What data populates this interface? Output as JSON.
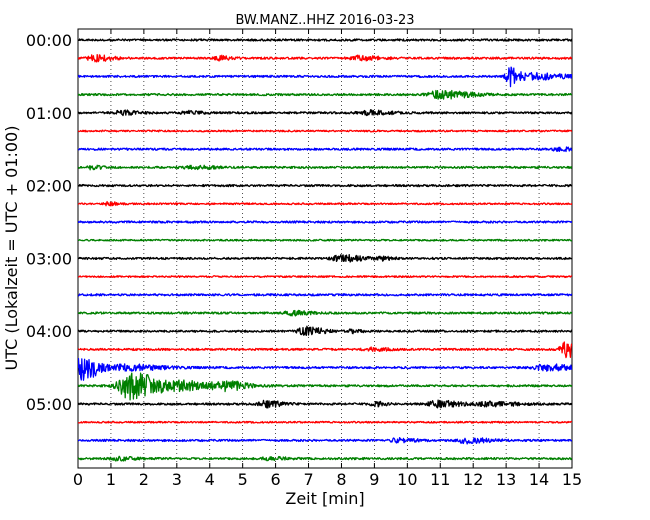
{
  "chart_data": {
    "type": "line",
    "title": "BW.MANZ..HHZ 2016-03-23",
    "xlabel": "Zeit  [min]",
    "ylabel": "UTC (Lokalzeit = UTC + 01:00)",
    "xlim": [
      0,
      15
    ],
    "x_ticks": [
      "0",
      "1",
      "2",
      "3",
      "4",
      "5",
      "6",
      "7",
      "8",
      "9",
      "10",
      "11",
      "12",
      "13",
      "14",
      "15"
    ],
    "y_ticks": [
      "00:00",
      "01:00",
      "02:00",
      "03:00",
      "04:00",
      "05:00"
    ],
    "grid": "vertical dotted",
    "colors": [
      "#000000",
      "#ff0000",
      "#0000ff",
      "#008000"
    ],
    "trace_interval_min": 15,
    "traces": [
      {
        "start": "00:00",
        "color": "#000000",
        "amp": 1.0,
        "events": []
      },
      {
        "start": "00:15",
        "color": "#ff0000",
        "amp": 1.0,
        "events": [
          {
            "t": 0.5,
            "a": 3,
            "w": 0.3
          },
          {
            "t": 4.3,
            "a": 2,
            "w": 0.2
          },
          {
            "t": 8.5,
            "a": 2,
            "w": 0.4
          }
        ]
      },
      {
        "start": "00:30",
        "color": "#0000ff",
        "amp": 1.0,
        "events": [
          {
            "t": 13.1,
            "a": 10,
            "w": 0.15
          },
          {
            "t": 13.8,
            "a": 3,
            "w": 0.6
          }
        ]
      },
      {
        "start": "00:45",
        "color": "#008000",
        "amp": 1.0,
        "events": [
          {
            "t": 11.0,
            "a": 4,
            "w": 0.5
          }
        ]
      },
      {
        "start": "01:00",
        "color": "#000000",
        "amp": 1.0,
        "events": [
          {
            "t": 1.3,
            "a": 2,
            "w": 0.3
          },
          {
            "t": 3.3,
            "a": 1.5,
            "w": 0.3
          },
          {
            "t": 8.8,
            "a": 2,
            "w": 0.4
          }
        ]
      },
      {
        "start": "01:15",
        "color": "#ff0000",
        "amp": 0.8,
        "events": []
      },
      {
        "start": "01:30",
        "color": "#0000ff",
        "amp": 1.0,
        "events": [
          {
            "t": 14.6,
            "a": 1.5,
            "w": 0.3
          }
        ]
      },
      {
        "start": "01:45",
        "color": "#008000",
        "amp": 1.0,
        "events": [
          {
            "t": 0.4,
            "a": 1.5,
            "w": 0.2
          },
          {
            "t": 3.5,
            "a": 1.5,
            "w": 0.4
          }
        ]
      },
      {
        "start": "02:00",
        "color": "#000000",
        "amp": 1.0,
        "events": []
      },
      {
        "start": "02:15",
        "color": "#ff0000",
        "amp": 0.8,
        "events": [
          {
            "t": 0.9,
            "a": 1.5,
            "w": 0.2
          }
        ]
      },
      {
        "start": "02:30",
        "color": "#0000ff",
        "amp": 1.0,
        "events": []
      },
      {
        "start": "02:45",
        "color": "#008000",
        "amp": 0.8,
        "events": []
      },
      {
        "start": "03:00",
        "color": "#000000",
        "amp": 1.0,
        "events": [
          {
            "t": 8.0,
            "a": 3,
            "w": 0.4
          },
          {
            "t": 9.2,
            "a": 1.5,
            "w": 0.2
          }
        ]
      },
      {
        "start": "03:15",
        "color": "#ff0000",
        "amp": 0.8,
        "events": []
      },
      {
        "start": "03:30",
        "color": "#0000ff",
        "amp": 1.0,
        "events": []
      },
      {
        "start": "03:45",
        "color": "#008000",
        "amp": 1.0,
        "events": [
          {
            "t": 6.5,
            "a": 2,
            "w": 0.3
          }
        ]
      },
      {
        "start": "04:00",
        "color": "#000000",
        "amp": 1.0,
        "events": [
          {
            "t": 6.9,
            "a": 4,
            "w": 0.3
          },
          {
            "t": 8.3,
            "a": 2,
            "w": 0.15
          }
        ]
      },
      {
        "start": "04:15",
        "color": "#ff0000",
        "amp": 1.0,
        "events": [
          {
            "t": 14.9,
            "a": 9,
            "w": 0.35
          },
          {
            "t": 8.9,
            "a": 1.5,
            "w": 0.3
          }
        ]
      },
      {
        "start": "04:30",
        "color": "#0000ff",
        "amp": 1.0,
        "events": [
          {
            "t": 0.1,
            "a": 13,
            "w": 0.3
          },
          {
            "t": 1.5,
            "a": 3,
            "w": 0.6
          },
          {
            "t": 14.2,
            "a": 3,
            "w": 0.5
          }
        ]
      },
      {
        "start": "04:45",
        "color": "#008000",
        "amp": 1.0,
        "events": [
          {
            "t": 1.6,
            "a": 14,
            "w": 0.5
          },
          {
            "t": 3.3,
            "a": 4,
            "w": 0.8
          },
          {
            "t": 4.5,
            "a": 3,
            "w": 0.3
          }
        ]
      },
      {
        "start": "05:00",
        "color": "#000000",
        "amp": 1.0,
        "events": [
          {
            "t": 5.7,
            "a": 3,
            "w": 0.3
          },
          {
            "t": 9.0,
            "a": 2,
            "w": 0.2
          },
          {
            "t": 10.9,
            "a": 3,
            "w": 0.4
          },
          {
            "t": 12.5,
            "a": 2,
            "w": 0.5
          }
        ]
      },
      {
        "start": "05:15",
        "color": "#ff0000",
        "amp": 0.8,
        "events": []
      },
      {
        "start": "05:30",
        "color": "#0000ff",
        "amp": 1.0,
        "events": [
          {
            "t": 9.7,
            "a": 2,
            "w": 0.3
          },
          {
            "t": 11.8,
            "a": 2.5,
            "w": 0.4
          }
        ]
      },
      {
        "start": "05:45",
        "color": "#008000",
        "amp": 1.0,
        "events": [
          {
            "t": 1.2,
            "a": 1.5,
            "w": 0.3
          },
          {
            "t": 5.8,
            "a": 1.5,
            "w": 0.3
          }
        ]
      }
    ]
  }
}
